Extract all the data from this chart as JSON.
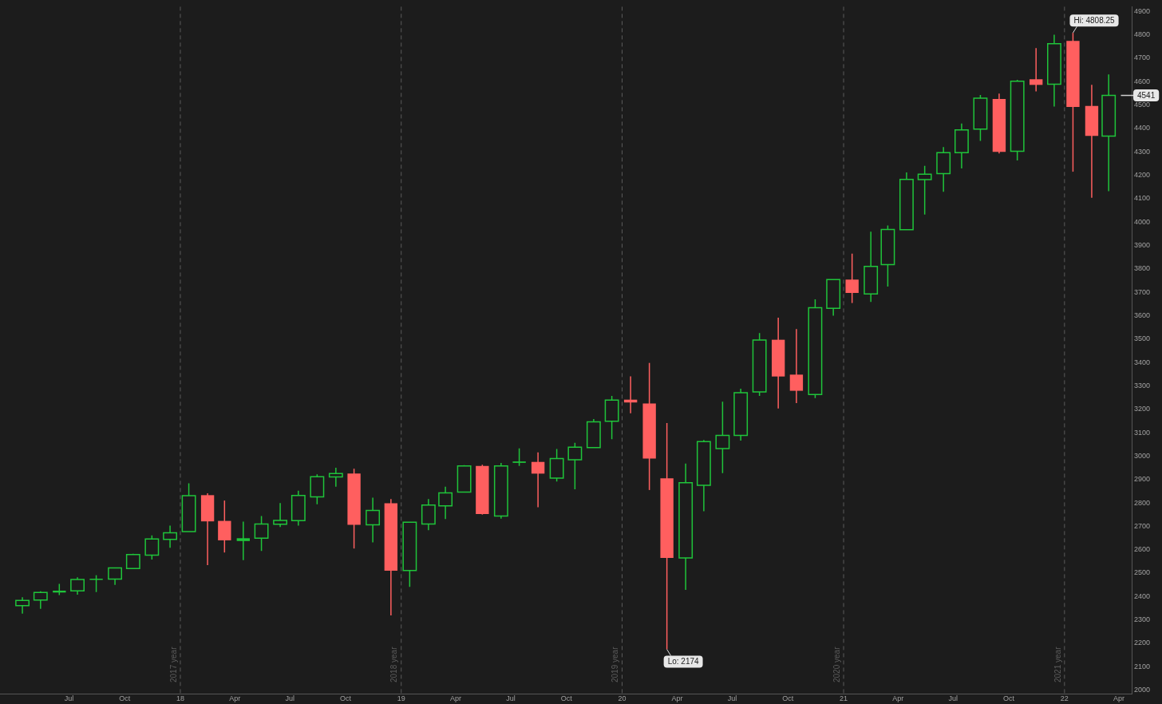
{
  "chart_data": {
    "type": "candlestick",
    "x": [
      "2017-04-15",
      "2017-05-15",
      "2017-06-15",
      "2017-07-15",
      "2017-08-15",
      "2017-09-15",
      "2017-10-15",
      "2017-11-15",
      "2017-12-15",
      "2018-01-15",
      "2018-02-15",
      "2018-03-15",
      "2018-04-15",
      "2018-05-15",
      "2018-06-15",
      "2018-07-15",
      "2018-08-15",
      "2018-09-15",
      "2018-10-15",
      "2018-11-15",
      "2018-12-15",
      "2019-01-15",
      "2019-02-15",
      "2019-03-15",
      "2019-04-15",
      "2019-05-15",
      "2019-06-15",
      "2019-07-15",
      "2019-08-15",
      "2019-09-15",
      "2019-10-15",
      "2019-11-15",
      "2019-12-15",
      "2020-01-15",
      "2020-02-15",
      "2020-03-15",
      "2020-04-15",
      "2020-05-15",
      "2020-06-15",
      "2020-07-15",
      "2020-08-15",
      "2020-09-15",
      "2020-10-15",
      "2020-11-15",
      "2020-12-15",
      "2021-01-15",
      "2021-02-15",
      "2021-03-15",
      "2021-04-15",
      "2021-05-15",
      "2021-06-15",
      "2021-07-15",
      "2021-08-15",
      "2021-09-15",
      "2021-10-15",
      "2021-11-15",
      "2021-12-15",
      "2022-01-15",
      "2022-02-15",
      "2022-03-15",
      "2022-04-15"
    ],
    "ohlc": [
      [
        2361,
        2397,
        2327,
        2383
      ],
      [
        2385,
        2422,
        2347,
        2417
      ],
      [
        2417,
        2454,
        2406,
        2425
      ],
      [
        2424,
        2482,
        2408,
        2473
      ],
      [
        2472,
        2491,
        2419,
        2476
      ],
      [
        2474,
        2524,
        2450,
        2522
      ],
      [
        2520,
        2583,
        2517,
        2579
      ],
      [
        2577,
        2661,
        2558,
        2646
      ],
      [
        2644,
        2703,
        2608,
        2672
      ],
      [
        2677,
        2884,
        2677,
        2831
      ],
      [
        2833,
        2841,
        2534,
        2721
      ],
      [
        2723,
        2810,
        2588,
        2640
      ],
      [
        2637,
        2720,
        2555,
        2649
      ],
      [
        2649,
        2744,
        2595,
        2710
      ],
      [
        2709,
        2799,
        2697,
        2725
      ],
      [
        2724,
        2852,
        2703,
        2832
      ],
      [
        2826,
        2922,
        2794,
        2912
      ],
      [
        2911,
        2950,
        2869,
        2925
      ],
      [
        2925,
        2946,
        2605,
        2706
      ],
      [
        2706,
        2822,
        2631,
        2768
      ],
      [
        2798,
        2816,
        2319,
        2510
      ],
      [
        2511,
        2720,
        2441,
        2717
      ],
      [
        2710,
        2816,
        2683,
        2791
      ],
      [
        2787,
        2869,
        2731,
        2843
      ],
      [
        2846,
        2961,
        2844,
        2958
      ],
      [
        2958,
        2963,
        2750,
        2752
      ],
      [
        2744,
        2971,
        2733,
        2958
      ],
      [
        2971,
        3033,
        2958,
        2977
      ],
      [
        2975,
        3016,
        2781,
        2925
      ],
      [
        2906,
        3030,
        2891,
        2989
      ],
      [
        2984,
        3057,
        2858,
        3038
      ],
      [
        3036,
        3158,
        3036,
        3146
      ],
      [
        3149,
        3257,
        3072,
        3239
      ],
      [
        3241,
        3341,
        3183,
        3229
      ],
      [
        3225,
        3398,
        2855,
        2989
      ],
      [
        2905,
        3141,
        2174,
        2565
      ],
      [
        2565,
        2968,
        2428,
        2886
      ],
      [
        2875,
        3069,
        2764,
        3062
      ],
      [
        3032,
        3232,
        2927,
        3088
      ],
      [
        3088,
        3288,
        3066,
        3271
      ],
      [
        3274,
        3526,
        3257,
        3496
      ],
      [
        3497,
        3591,
        3203,
        3340
      ],
      [
        3348,
        3543,
        3226,
        3279
      ],
      [
        3263,
        3670,
        3248,
        3634
      ],
      [
        3631,
        3756,
        3600,
        3754
      ],
      [
        3754,
        3865,
        3654,
        3697
      ],
      [
        3693,
        3959,
        3659,
        3810
      ],
      [
        3818,
        3985,
        3724,
        3968
      ],
      [
        3967,
        4212,
        3967,
        4182
      ],
      [
        4181,
        4240,
        4032,
        4204
      ],
      [
        4207,
        4320,
        4129,
        4296
      ],
      [
        4296,
        4421,
        4229,
        4394
      ],
      [
        4397,
        4543,
        4347,
        4529
      ],
      [
        4526,
        4549,
        4293,
        4300
      ],
      [
        4302,
        4608,
        4263,
        4602
      ],
      [
        4610,
        4743,
        4558,
        4586
      ],
      [
        4589,
        4800,
        4493,
        4762
      ],
      [
        4774,
        4808.25,
        4215,
        4492
      ],
      [
        4496,
        4586,
        4104,
        4368
      ],
      [
        4367,
        4631,
        4132,
        4541
      ],
      [
        4541,
        4541,
        4541,
        4541
      ]
    ],
    "colors": [
      "#1fc43a",
      "#1fc43a",
      "#1fc43a",
      "#1fc43a",
      "#1fc43a",
      "#1fc43a",
      "#1fc43a",
      "#1fc43a",
      "#1fc43a",
      "#1fc43a",
      "#ff5f5f",
      "#ff5f5f",
      "#1fc43a",
      "#1fc43a",
      "#1fc43a",
      "#1fc43a",
      "#1fc43a",
      "#1fc43a",
      "#ff5f5f",
      "#1fc43a",
      "#ff5f5f",
      "#1fc43a",
      "#1fc43a",
      "#1fc43a",
      "#1fc43a",
      "#ff5f5f",
      "#1fc43a",
      "#1fc43a",
      "#ff5f5f",
      "#1fc43a",
      "#1fc43a",
      "#1fc43a",
      "#1fc43a",
      "#ff5f5f",
      "#ff5f5f",
      "#ff5f5f",
      "#1fc43a",
      "#1fc43a",
      "#1fc43a",
      "#1fc43a",
      "#1fc43a",
      "#ff5f5f",
      "#ff5f5f",
      "#1fc43a",
      "#1fc43a",
      "#ff5f5f",
      "#1fc43a",
      "#1fc43a",
      "#1fc43a",
      "#1fc43a",
      "#1fc43a",
      "#1fc43a",
      "#1fc43a",
      "#ff5f5f",
      "#1fc43a",
      "#ff5f5f",
      "#1fc43a",
      "#ff5f5f",
      "#ff5f5f",
      "#1fc43a",
      "#d0d0d0"
    ],
    "xlim": [
      "2017-03-09",
      "2022-04-22"
    ],
    "xticks": [
      {
        "value": "2017-07-01",
        "label": "Jul"
      },
      {
        "value": "2017-10-01",
        "label": "Oct"
      },
      {
        "value": "2018-01-01",
        "label": "18"
      },
      {
        "value": "2018-04-01",
        "label": "Apr"
      },
      {
        "value": "2018-07-01",
        "label": "Jul"
      },
      {
        "value": "2018-10-01",
        "label": "Oct"
      },
      {
        "value": "2019-01-01",
        "label": "19"
      },
      {
        "value": "2019-04-01",
        "label": "Apr"
      },
      {
        "value": "2019-07-01",
        "label": "Jul"
      },
      {
        "value": "2019-10-01",
        "label": "Oct"
      },
      {
        "value": "2020-01-01",
        "label": "20"
      },
      {
        "value": "2020-04-01",
        "label": "Apr"
      },
      {
        "value": "2020-07-01",
        "label": "Jul"
      },
      {
        "value": "2020-10-01",
        "label": "Oct"
      },
      {
        "value": "2021-01-01",
        "label": "21"
      },
      {
        "value": "2021-04-01",
        "label": "Apr"
      },
      {
        "value": "2021-07-01",
        "label": "Jul"
      },
      {
        "value": "2021-10-01",
        "label": "Oct"
      },
      {
        "value": "2022-01-01",
        "label": "22"
      },
      {
        "value": "2022-04-01",
        "label": "Apr"
      }
    ],
    "ylim": [
      1985,
      4920
    ],
    "yticks": [
      2000,
      2100,
      2200,
      2300,
      2400,
      2500,
      2600,
      2700,
      2800,
      2900,
      3000,
      3100,
      3200,
      3300,
      3400,
      3500,
      3600,
      3700,
      3800,
      3900,
      4000,
      4100,
      4200,
      4300,
      4400,
      4500,
      4600,
      4700,
      4800,
      4900
    ],
    "ref_lines": [
      {
        "axis": "x",
        "value": "2018-01-01",
        "label": "2017 year",
        "color": "#5c5c5c",
        "line_style": "dashed"
      },
      {
        "axis": "x",
        "value": "2019-01-01",
        "label": "2018 year",
        "color": "#5c5c5c",
        "line_style": "dashed"
      },
      {
        "axis": "x",
        "value": "2020-01-01",
        "label": "2019 year",
        "color": "#5c5c5c",
        "line_style": "dashed"
      },
      {
        "axis": "x",
        "value": "2021-01-01",
        "label": "2020 year",
        "color": "#5c5c5c",
        "line_style": "dashed"
      },
      {
        "axis": "x",
        "value": "2022-01-01",
        "label": "2021 year",
        "color": "#5c5c5c",
        "line_style": "dashed"
      }
    ],
    "annotations": [
      {
        "text": "Hi: 4808.25",
        "x": "2022-01-15",
        "y": 4808.25
      },
      {
        "text": "Lo: 2174",
        "x": "2020-03-15",
        "y": 2174
      },
      {
        "text": "4541",
        "x": "2022-04-15",
        "y": 4541
      }
    ],
    "grid": false,
    "legend": false
  }
}
